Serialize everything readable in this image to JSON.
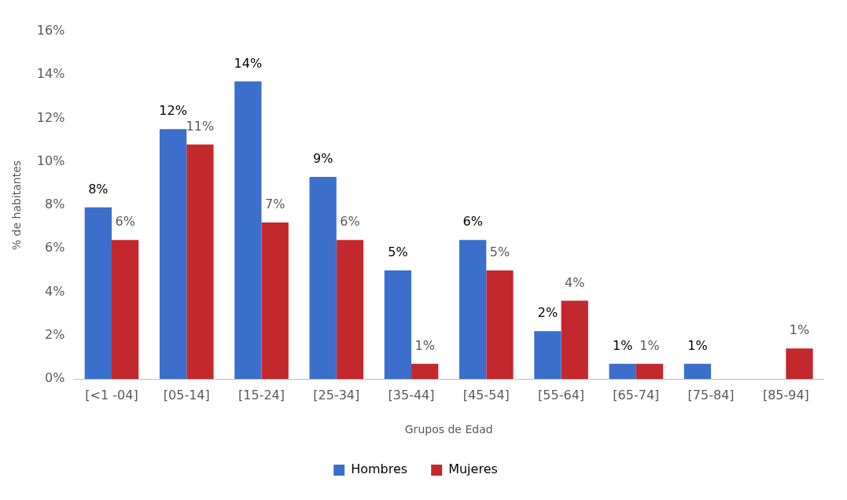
{
  "chart_data": {
    "type": "bar",
    "xlabel": "Grupos de Edad",
    "ylabel": "% de habitantes",
    "categories": [
      "[<1 -04]",
      "[05-14]",
      "[15-24]",
      "[25-34]",
      "[35-44]",
      "[45-54]",
      "[55-64]",
      "[65-74]",
      "[75-84]",
      "[85-94]"
    ],
    "series": [
      {
        "name": "Hombres",
        "color": "#3b6fcb",
        "values": [
          7.9,
          11.5,
          13.7,
          9.3,
          5.0,
          6.4,
          2.2,
          0.7,
          0.7,
          null
        ],
        "value_labels": [
          "8%",
          "12%",
          "14%",
          "9%",
          "5%",
          "6%",
          "2%",
          "1%",
          "1%",
          null
        ]
      },
      {
        "name": "Mujeres",
        "color": "#c3282d",
        "values": [
          6.4,
          10.8,
          7.2,
          6.4,
          0.7,
          5.0,
          3.6,
          0.7,
          null,
          1.4
        ],
        "value_labels": [
          "6%",
          "11%",
          "7%",
          "6%",
          "1%",
          "5%",
          "4%",
          "1%",
          null,
          "1%"
        ]
      }
    ],
    "ylim": [
      0,
      16
    ],
    "yticks": [
      {
        "value": 0,
        "label": "0%"
      },
      {
        "value": 2,
        "label": "2%"
      },
      {
        "value": 4,
        "label": "4%"
      },
      {
        "value": 6,
        "label": "6%"
      },
      {
        "value": 8,
        "label": "8%"
      },
      {
        "value": 10,
        "label": "10%"
      },
      {
        "value": 12,
        "label": "12%"
      },
      {
        "value": 14,
        "label": "14%"
      },
      {
        "value": 16,
        "label": "16%"
      }
    ],
    "grid": false,
    "legend": "bottom"
  }
}
